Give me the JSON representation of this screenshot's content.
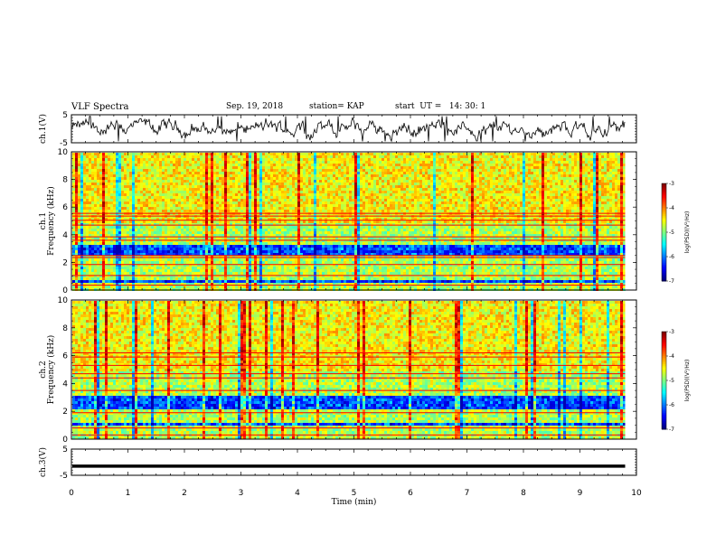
{
  "header": {
    "title": "VLF Spectra",
    "date": "Sep. 19, 2018",
    "station": "station= KAP",
    "start": "start  UT =   14: 30: 1"
  },
  "chart_data": [
    {
      "type": "line",
      "name": "ch1-waveform",
      "ylabel": "ch.1(V)",
      "ylim": [
        -5,
        5
      ],
      "yticks": [
        "5",
        "-5"
      ],
      "xlim": [
        0,
        10
      ]
    },
    {
      "type": "heatmap",
      "name": "ch1-spectrogram",
      "ylabel_line1": "ch.1",
      "ylabel_line2": "Frequency  (kHz)",
      "ylim": [
        0,
        10
      ],
      "yticks": [
        "0",
        "2",
        "4",
        "6",
        "8",
        "10"
      ],
      "xlim": [
        0,
        10
      ],
      "x_extent_min": 9.8,
      "colorbar": {
        "label": "log(PSD)(V²/Hz)",
        "range": [
          -7,
          -3
        ],
        "ticks": [
          "-3",
          "-4",
          "-5",
          "-6",
          "-7"
        ]
      }
    },
    {
      "type": "heatmap",
      "name": "ch2-spectrogram",
      "ylabel_line1": "ch.2",
      "ylabel_line2": "Frequency  (kHz)",
      "ylim": [
        0,
        10
      ],
      "yticks": [
        "0",
        "2",
        "4",
        "6",
        "8",
        "10"
      ],
      "xlim": [
        0,
        10
      ],
      "x_extent_min": 9.8,
      "colorbar": {
        "label": "log(PSD)(V²/Hz)",
        "range": [
          -7,
          -3
        ],
        "ticks": [
          "-3",
          "-4",
          "-5",
          "-6",
          "-7"
        ]
      }
    },
    {
      "type": "line",
      "name": "ch3-waveform",
      "ylabel": "ch.3(V)",
      "ylim": [
        -5,
        5
      ],
      "yticks": [
        "5",
        "-5"
      ],
      "xlim": [
        0,
        10
      ],
      "constant_value": -1.5
    }
  ],
  "xaxis": {
    "label": "Time  (min)",
    "ticks": [
      "0",
      "1",
      "2",
      "3",
      "4",
      "5",
      "6",
      "7",
      "8",
      "9",
      "10"
    ]
  }
}
